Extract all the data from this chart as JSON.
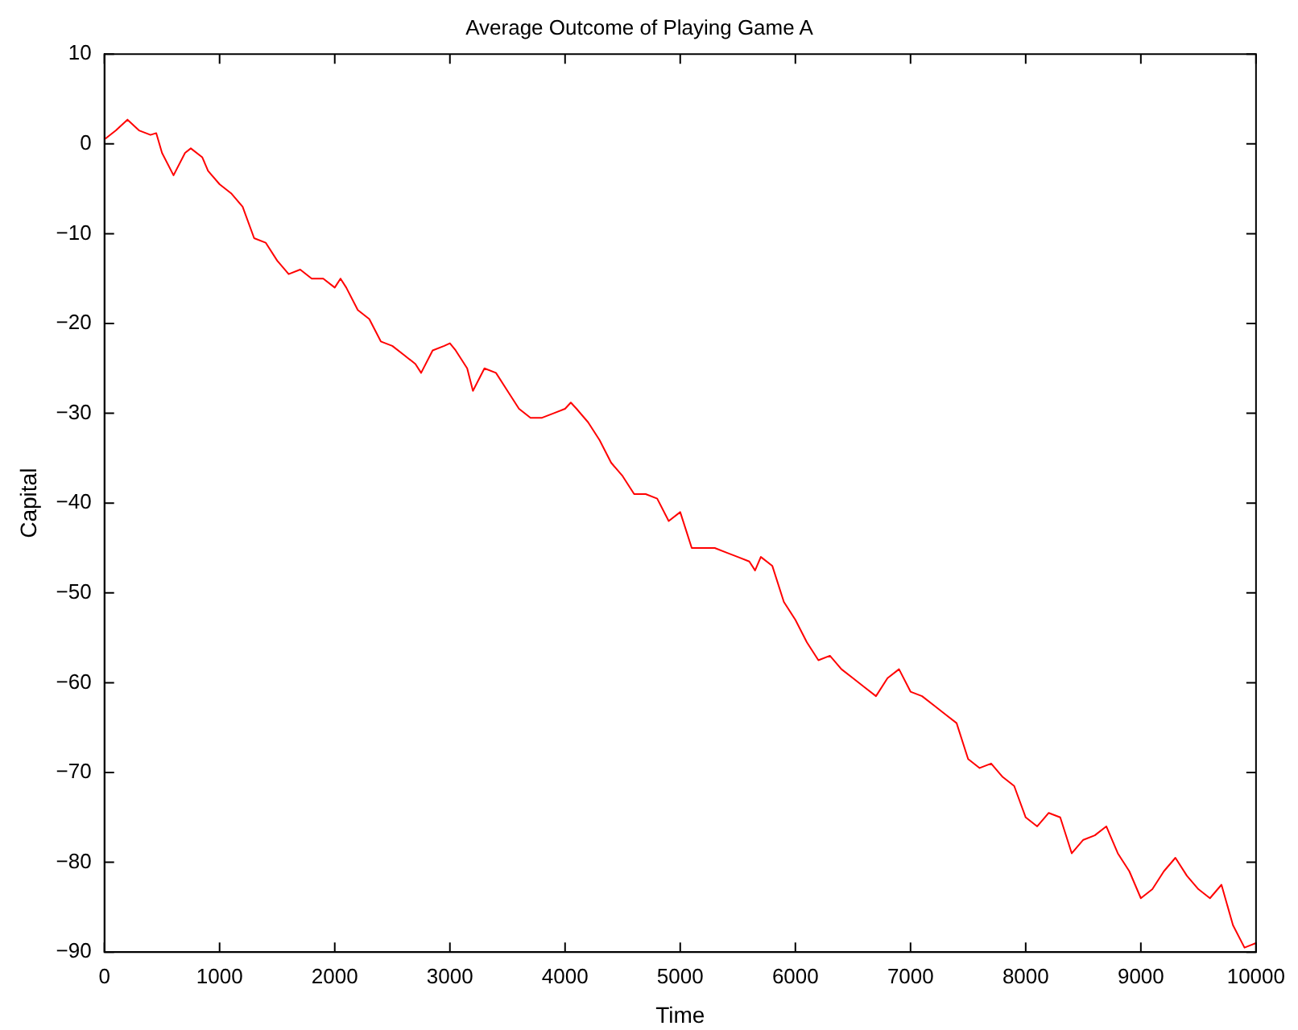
{
  "chart_data": {
    "type": "line",
    "title": "Average Outcome of Playing Game A",
    "xlabel": "Time",
    "ylabel": "Capital",
    "x": [
      0,
      100,
      200,
      300,
      400,
      450,
      500,
      600,
      700,
      750,
      850,
      900,
      1000,
      1100,
      1200,
      1300,
      1400,
      1500,
      1600,
      1700,
      1800,
      1900,
      2000,
      2050,
      2100,
      2200,
      2300,
      2400,
      2500,
      2600,
      2700,
      2750,
      2850,
      2950,
      3000,
      3050,
      3150,
      3200,
      3300,
      3400,
      3500,
      3600,
      3700,
      3800,
      3900,
      4000,
      4050,
      4100,
      4200,
      4300,
      4400,
      4500,
      4600,
      4700,
      4800,
      4900,
      5000,
      5050,
      5100,
      5200,
      5300,
      5400,
      5500,
      5600,
      5650,
      5700,
      5800,
      5900,
      6000,
      6100,
      6200,
      6300,
      6400,
      6500,
      6600,
      6700,
      6800,
      6900,
      7000,
      7100,
      7200,
      7300,
      7400,
      7500,
      7600,
      7700,
      7800,
      7900,
      8000,
      8100,
      8200,
      8300,
      8400,
      8500,
      8600,
      8700,
      8800,
      8900,
      9000,
      9100,
      9200,
      9300,
      9400,
      9500,
      9600,
      9700,
      9800,
      9900,
      10000
    ],
    "series": [
      {
        "color": "#ff0000",
        "values": [
          0.5,
          1.5,
          2.7,
          1.5,
          1,
          1.2,
          -1,
          -3.5,
          -1,
          -0.5,
          -1.5,
          -3,
          -4.5,
          -5.5,
          -7,
          -10.5,
          -11,
          -13,
          -14.5,
          -14,
          -15,
          -15,
          -16,
          -15,
          -16,
          -18.5,
          -19.5,
          -22,
          -22.5,
          -23.5,
          -24.5,
          -25.5,
          -23,
          -22.5,
          -22.2,
          -23,
          -25,
          -27.5,
          -25,
          -25.5,
          -27.5,
          -29.5,
          -30.5,
          -30.5,
          -30,
          -29.5,
          -28.8,
          -29.5,
          -31,
          -33,
          -35.5,
          -37,
          -39,
          -39,
          -39.5,
          -42,
          -41,
          -43,
          -45,
          -45,
          -45,
          -45.5,
          -46,
          -46.5,
          -47.5,
          -46,
          -47,
          -51,
          -53,
          -55.5,
          -57.5,
          -57,
          -58.5,
          -59.5,
          -60.5,
          -61.5,
          -59.5,
          -58.5,
          -61,
          -61.5,
          -62.5,
          -63.5,
          -64.5,
          -68.5,
          -69.5,
          -69,
          -70.5,
          -71.5,
          -75,
          -76,
          -74.5,
          -75,
          -79,
          -77.5,
          -77,
          -76,
          -79,
          -81,
          -84,
          -83,
          -81,
          -79.5,
          -81.5,
          -83,
          -84,
          -82.5,
          -87,
          -89.5,
          -89
        ]
      }
    ],
    "xlim": [
      0,
      10000
    ],
    "xticks": [
      0,
      1000,
      2000,
      3000,
      4000,
      5000,
      6000,
      7000,
      8000,
      9000,
      10000
    ],
    "ylim": [
      -90,
      10
    ],
    "yticks": [
      -90,
      -80,
      -70,
      -60,
      -50,
      -40,
      -30,
      -20,
      -10,
      0,
      10
    ],
    "grid": false,
    "legend": false,
    "marker": "none",
    "line_style": "solid"
  }
}
